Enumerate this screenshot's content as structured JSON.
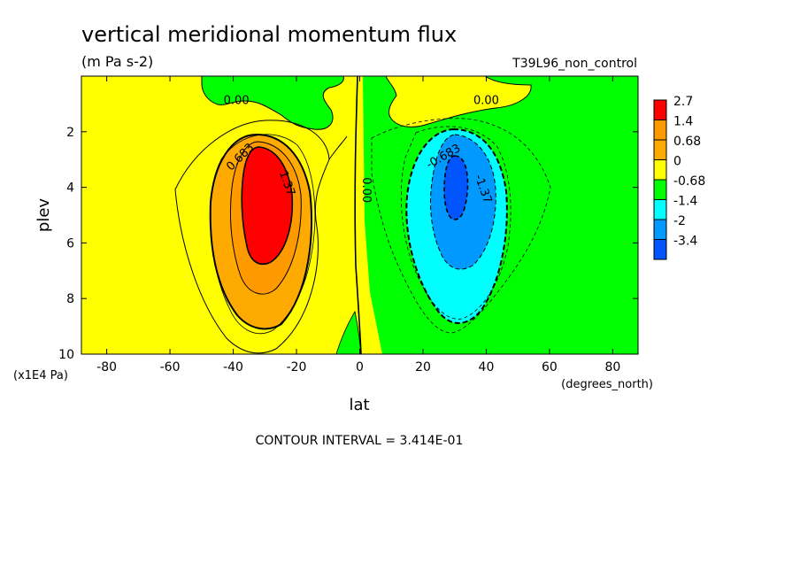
{
  "chart_data": {
    "type": "contour",
    "title": "vertical meridional momentum flux",
    "units": "(m Pa s-2)",
    "run_label": "T39L96_non_control",
    "xlabel": "lat",
    "x_units": "(degrees_north)",
    "ylabel": "plev",
    "y_units": "(x1E4 Pa)",
    "xlim": [
      -88,
      88
    ],
    "ylim": [
      10,
      0
    ],
    "x_ticks": [
      -80,
      -60,
      -40,
      -20,
      0,
      20,
      40,
      60,
      80
    ],
    "y_ticks": [
      2,
      4,
      6,
      8,
      10
    ],
    "contour_interval_text": "CONTOUR INTERVAL = 3.414E-01",
    "colorbar": {
      "labels": [
        "2.7",
        "1.4",
        "0.68",
        "0",
        "-0.68",
        "-1.4",
        "-2",
        "-3.4"
      ],
      "colors": [
        "#ff0000",
        "#ff9900",
        "#ffaa00",
        "#ffff00",
        "#00ff00",
        "#00ffff",
        "#0099ff",
        "#0055ff"
      ]
    },
    "contour_labels": [
      {
        "text": "0.00",
        "lat": -39,
        "plev": 1.0
      },
      {
        "text": "0.683",
        "lat": -37,
        "plev": 3.0
      },
      {
        "text": "1.37",
        "lat": -24,
        "plev": 3.9
      },
      {
        "text": "0.00",
        "lat": 1,
        "plev": 4.1
      },
      {
        "text": "0.00",
        "lat": 40,
        "plev": 1.0
      },
      {
        "text": "-0.683",
        "lat": 27,
        "plev": 3.0
      },
      {
        "text": "-1.37",
        "lat": 38,
        "plev": 4.1
      }
    ],
    "extrema": [
      {
        "sign": "positive",
        "lat": -30,
        "plev": 4.5,
        "approx_max": 2.7
      },
      {
        "sign": "negative",
        "lat": 30,
        "plev": 4.2,
        "approx_min": -3.4
      }
    ]
  }
}
